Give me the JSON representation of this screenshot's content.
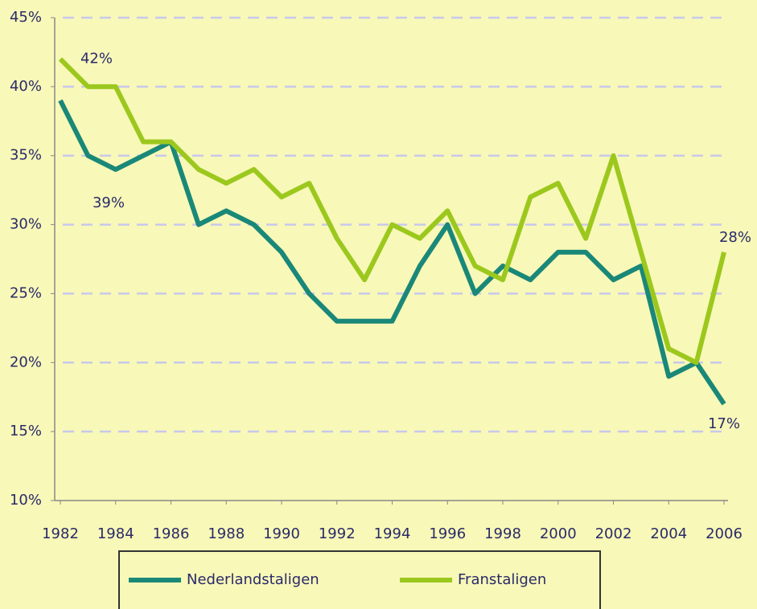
{
  "chart_data": {
    "type": "line",
    "x": [
      1982,
      1983,
      1984,
      1985,
      1986,
      1987,
      1988,
      1989,
      1990,
      1991,
      1992,
      1993,
      1994,
      1995,
      1996,
      1997,
      1998,
      1999,
      2000,
      2001,
      2002,
      2003,
      2004,
      2005,
      2006
    ],
    "series": [
      {
        "name": "Nederlandstaligen",
        "color": "#1a8878",
        "values": [
          39,
          35,
          34,
          35,
          36,
          30,
          31,
          30,
          28,
          25,
          23,
          23,
          23,
          27,
          30,
          25,
          27,
          26,
          28,
          28,
          26,
          27,
          19,
          20,
          17
        ],
        "value_labels": [
          "39%",
          null,
          null,
          null,
          null,
          null,
          null,
          null,
          null,
          null,
          null,
          null,
          null,
          null,
          null,
          null,
          null,
          null,
          null,
          null,
          null,
          null,
          null,
          null,
          "17%"
        ]
      },
      {
        "name": "Franstaligen",
        "color": "#9cc81e",
        "values": [
          42,
          40,
          40,
          36,
          36,
          34,
          33,
          34,
          32,
          33,
          29,
          26,
          30,
          29,
          31,
          27,
          26,
          32,
          33,
          29,
          35,
          28,
          21,
          20,
          28
        ],
        "value_labels": [
          "42%",
          null,
          null,
          null,
          null,
          null,
          null,
          null,
          null,
          null,
          null,
          null,
          null,
          null,
          null,
          null,
          null,
          null,
          null,
          null,
          null,
          null,
          null,
          null,
          "28%"
        ]
      }
    ],
    "xlim": [
      1982,
      2006
    ],
    "xticks": [
      1982,
      1984,
      1986,
      1988,
      1990,
      1992,
      1994,
      1996,
      1998,
      2000,
      2002,
      2004,
      2006
    ],
    "ylim": [
      10,
      45
    ],
    "yticks": [
      {
        "value": 10,
        "label": "10%"
      },
      {
        "value": 15,
        "label": "15%"
      },
      {
        "value": 20,
        "label": "20%"
      },
      {
        "value": 25,
        "label": "25%"
      },
      {
        "value": 30,
        "label": "30%"
      },
      {
        "value": 35,
        "label": "35%"
      },
      {
        "value": 40,
        "label": "40%"
      },
      {
        "value": 45,
        "label": "45%"
      }
    ],
    "grid": true
  }
}
